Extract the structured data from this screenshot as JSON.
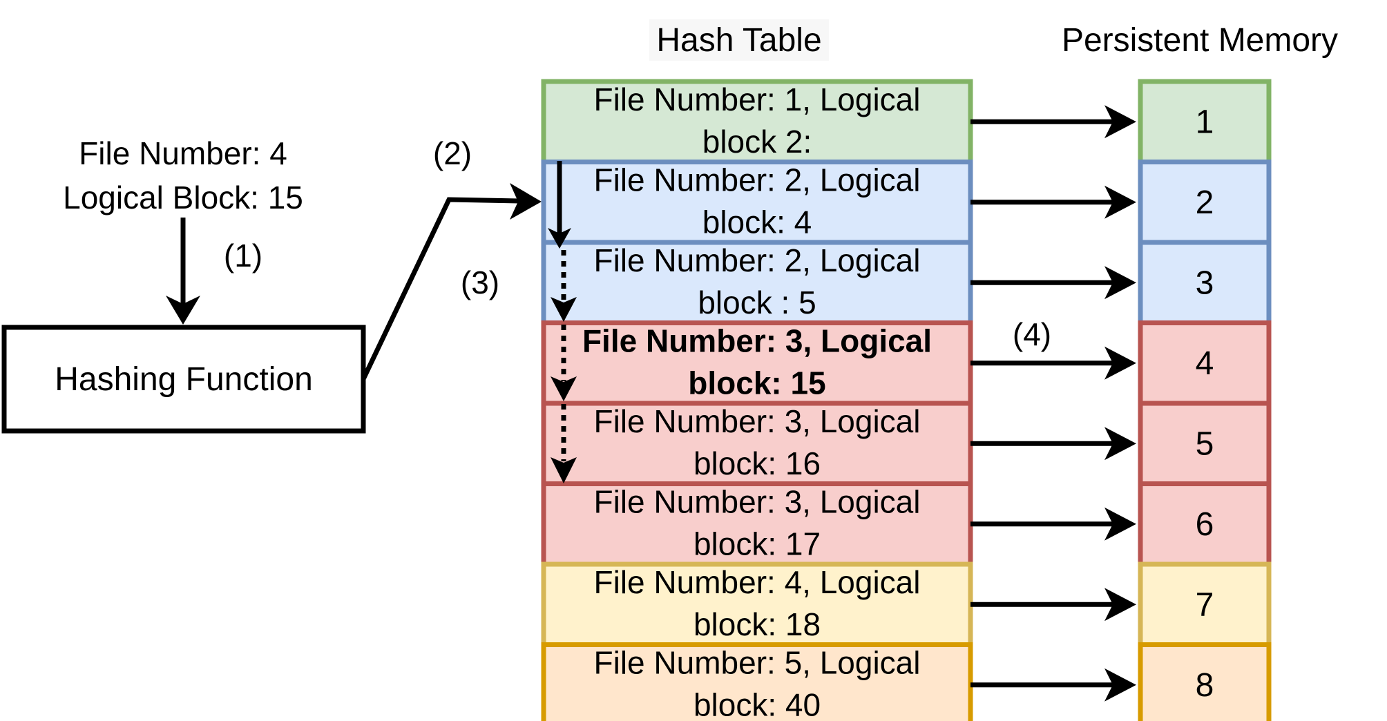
{
  "diagram": {
    "input": {
      "line1": "File Number: 4",
      "line2": "Logical Block: 15"
    },
    "hashing_function": "Hashing Function",
    "step_labels": {
      "step1": "(1)",
      "step2": "(2)",
      "step3": "(3)",
      "step4": "(4)"
    },
    "hash_table_title": "Hash Table",
    "persistent_memory_title": "Persistent Memory",
    "hash_table_rows": [
      {
        "line1": "File Number: 1, Logical",
        "line2": "block 2:",
        "fill": "#d5e8d4",
        "stroke": "#82b366",
        "bold": false
      },
      {
        "line1": "File Number: 2, Logical",
        "line2": "block: 4",
        "fill": "#dae8fc",
        "stroke": "#6c8ebf",
        "bold": false
      },
      {
        "line1": "File Number: 2, Logical",
        "line2": "block : 5",
        "fill": "#dae8fc",
        "stroke": "#6c8ebf",
        "bold": false
      },
      {
        "line1": "File Number: 3, Logical",
        "line2": "block: 15",
        "fill": "#f8cecc",
        "stroke": "#b85450",
        "bold": true
      },
      {
        "line1": "File Number: 3, Logical",
        "line2": "block: 16",
        "fill": "#f8cecc",
        "stroke": "#b85450",
        "bold": false
      },
      {
        "line1": "File Number: 3, Logical",
        "line2": "block: 17",
        "fill": "#f8cecc",
        "stroke": "#b85450",
        "bold": false
      },
      {
        "line1": "File Number: 4, Logical",
        "line2": "block: 18",
        "fill": "#fff2cc",
        "stroke": "#d6b656",
        "bold": false
      },
      {
        "line1": "File Number: 5, Logical",
        "line2": "block: 40",
        "fill": "#ffe6cc",
        "stroke": "#d79b00",
        "bold": false
      }
    ],
    "memory_blocks": [
      "1",
      "2",
      "3",
      "4",
      "5",
      "6",
      "7",
      "8"
    ]
  }
}
